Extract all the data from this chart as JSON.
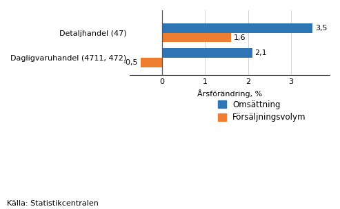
{
  "categories": [
    "Dagligvaruhandel (4711, 472)",
    "Detaljhandel (47)"
  ],
  "omsattning": [
    2.1,
    3.5
  ],
  "forsaljningsvolym": [
    -0.5,
    1.6
  ],
  "bar_color_omsattning": "#2E75B6",
  "bar_color_forsaljning": "#ED7D31",
  "xlabel": "Årsförändring, %",
  "xlim": [
    -0.75,
    3.9
  ],
  "xticks": [
    0,
    1,
    2,
    3
  ],
  "xtick_labels": [
    "0",
    "1",
    "2",
    "3"
  ],
  "legend_omsattning": "Omsättning",
  "legend_forsaljning": "Försäljningsvolym",
  "source": "Källa: Statistikcentralen",
  "bar_height": 0.38,
  "label_fontsize": 8.0,
  "axis_fontsize": 8.0,
  "source_fontsize": 8.0,
  "legend_fontsize": 8.5
}
